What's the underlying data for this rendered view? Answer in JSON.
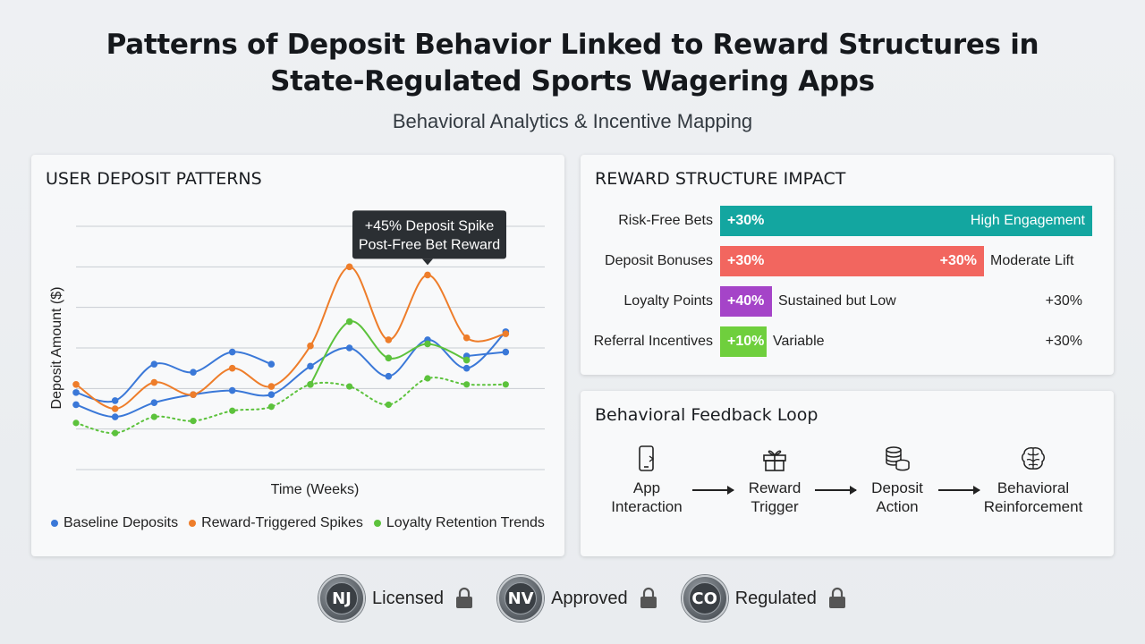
{
  "header": {
    "title_line1": "Patterns of Deposit Behavior Linked to Reward Structures in",
    "title_line2": "State-Regulated Sports Wagering Apps",
    "subtitle": "Behavioral Analytics & Incentive Mapping"
  },
  "deposit_panel": {
    "title": "USER DEPOSIT PATTERNS",
    "callout_line1": "+45% Deposit Spike",
    "callout_line2": "Post-Free Bet Reward"
  },
  "chart_data": {
    "type": "line",
    "title": "USER DEPOSIT PATTERNS",
    "xlabel": "Time (Weeks)",
    "ylabel": "Deposit Amount ($)",
    "ylim": [
      0,
      6
    ],
    "x": [
      1,
      2,
      3,
      4,
      5,
      6,
      7,
      8,
      9,
      10,
      11,
      12,
      13
    ],
    "grid": true,
    "legend_position": "bottom",
    "series": [
      {
        "name": "Baseline Deposits",
        "color": "#3a78d8",
        "lines": [
          [
            [
              1,
              1.9
            ],
            [
              2,
              1.7
            ],
            [
              3,
              2.6
            ],
            [
              4,
              2.4
            ],
            [
              5,
              2.9
            ],
            [
              6,
              2.6
            ]
          ],
          [
            [
              1,
              1.6
            ],
            [
              2,
              1.3
            ],
            [
              3,
              1.65
            ],
            [
              4,
              1.85
            ],
            [
              5,
              1.95
            ],
            [
              6,
              1.85
            ],
            [
              7,
              2.55
            ],
            [
              8,
              3.0
            ],
            [
              9,
              2.3
            ],
            [
              10,
              3.2
            ],
            [
              11,
              2.5
            ],
            [
              12,
              3.4
            ]
          ],
          [
            [
              11,
              2.8
            ],
            [
              12,
              2.9
            ]
          ]
        ]
      },
      {
        "name": "Reward-Triggered Spikes",
        "color": "#ee7d2a",
        "lines": [
          [
            [
              1,
              2.1
            ],
            [
              2,
              1.5
            ],
            [
              3,
              2.15
            ],
            [
              4,
              1.85
            ],
            [
              5,
              2.5
            ],
            [
              6,
              2.05
            ],
            [
              7,
              3.05
            ],
            [
              8,
              5.0
            ],
            [
              9,
              3.2
            ],
            [
              10,
              4.8
            ],
            [
              11,
              3.25
            ],
            [
              12,
              3.35
            ]
          ]
        ]
      },
      {
        "name": "Loyalty Retention Trends",
        "color": "#5cc23c",
        "lines": [
          [
            [
              7,
              2.1
            ],
            [
              8,
              3.65
            ],
            [
              9,
              2.75
            ],
            [
              10,
              3.1
            ],
            [
              11,
              2.7
            ]
          ]
        ],
        "dotted": [
          [
            1,
            1.15
          ],
          [
            2,
            0.9
          ],
          [
            3,
            1.3
          ],
          [
            4,
            1.2
          ],
          [
            5,
            1.45
          ],
          [
            6,
            1.55
          ],
          [
            7,
            2.1
          ],
          [
            8,
            2.05
          ],
          [
            9,
            1.6
          ],
          [
            10,
            2.25
          ],
          [
            11,
            2.1
          ],
          [
            12,
            2.1
          ]
        ]
      }
    ],
    "annotation": {
      "x": 10,
      "y": 4.8,
      "text": "+45% Deposit Spike Post-Free Bet Reward"
    }
  },
  "impact_panel": {
    "title": "REWARD STRUCTURE IMPACT",
    "rows": [
      {
        "label": "Risk-Free Bets",
        "value": "+30%",
        "in_label": "High Engagement",
        "after": "",
        "right": "",
        "color": "#13a6a0",
        "fill": 1.0
      },
      {
        "label": "Deposit Bonuses",
        "value": "+30%",
        "in_label": "+30%",
        "after": "Moderate Lift",
        "right": "",
        "color": "#f2665f",
        "fill": 0.71
      },
      {
        "label": "Loyalty Points",
        "value": "+40%",
        "in_label": "",
        "after": "Sustained but Low",
        "right": "+30%",
        "color": "#a544c8",
        "fill": 0.14
      },
      {
        "label": "Referral Incentives",
        "value": "+10%",
        "in_label": "",
        "after": "Variable",
        "right": "+30%",
        "color": "#6fcf3d",
        "fill": 0.12
      }
    ]
  },
  "loop_panel": {
    "title": "Behavioral Feedback Loop",
    "steps": [
      {
        "line1": "App",
        "line2": "Interaction",
        "icon": "phone-icon"
      },
      {
        "line1": "Reward",
        "line2": "Trigger",
        "icon": "gift-icon"
      },
      {
        "line1": "Deposit",
        "line2": "Action",
        "icon": "coins-icon"
      },
      {
        "line1": "Behavioral",
        "line2": "Reinforcement",
        "icon": "brain-icon"
      }
    ]
  },
  "badges": [
    {
      "seal": "NJ",
      "text": "Licensed"
    },
    {
      "seal": "NV",
      "text": "Approved"
    },
    {
      "seal": "CO",
      "text": "Regulated"
    }
  ]
}
